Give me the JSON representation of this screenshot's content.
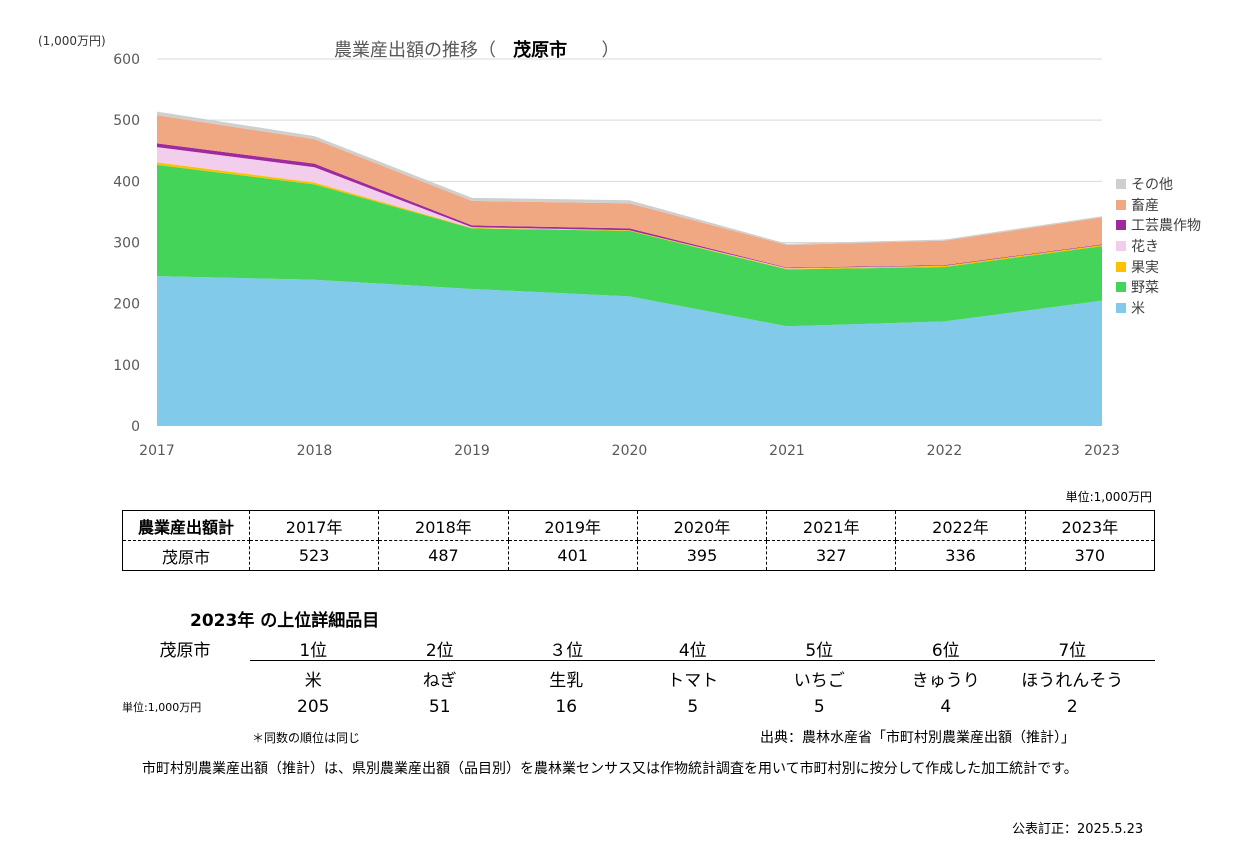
{
  "chart_data": {
    "type": "area",
    "title": "農業産出額の推移（",
    "title_city": "茂原市",
    "title_close": "）",
    "unit_label": "(1,000万円)",
    "x": [
      2017,
      2018,
      2019,
      2020,
      2021,
      2022,
      2023
    ],
    "ylim": [
      0,
      600
    ],
    "yticks": [
      0,
      100,
      200,
      300,
      400,
      500,
      600
    ],
    "grid": true,
    "stacked": true,
    "legend_position": "right",
    "series": [
      {
        "name": "米",
        "color": "#82caea",
        "values": [
          245,
          239,
          224,
          212,
          163,
          171,
          205
        ]
      },
      {
        "name": "野菜",
        "color": "#45d45a",
        "values": [
          182,
          156,
          99,
          107,
          93,
          89,
          89
        ]
      },
      {
        "name": "果実",
        "color": "#ffc000",
        "values": [
          4,
          3,
          1,
          1,
          1,
          2,
          2
        ]
      },
      {
        "name": "花き",
        "color": "#f2cdec",
        "values": [
          25,
          25,
          1,
          0,
          1,
          0,
          0
        ]
      },
      {
        "name": "工芸農作物",
        "color": "#9e2a9e",
        "values": [
          6,
          6,
          3,
          3,
          1,
          1,
          1
        ]
      },
      {
        "name": "畜産",
        "color": "#f0a882",
        "values": [
          46,
          40,
          40,
          41,
          37,
          40,
          44
        ]
      },
      {
        "name": "その他",
        "color": "#cfcfcf",
        "values": [
          6,
          5,
          5,
          5,
          2,
          2,
          2
        ]
      }
    ]
  },
  "totals_table": {
    "unit": "単位:1,000万円",
    "header_label": "農業産出額計",
    "years": [
      "2017年",
      "2018年",
      "2019年",
      "2020年",
      "2021年",
      "2022年",
      "2023年"
    ],
    "row_label": "茂原市",
    "values": [
      "523",
      "487",
      "401",
      "395",
      "327",
      "336",
      "370"
    ]
  },
  "top_items": {
    "title": "2023年 の上位詳細品目",
    "city": "茂原市",
    "ranks": [
      "1位",
      "2位",
      "３位",
      "4位",
      "5位",
      "6位",
      "7位"
    ],
    "items": [
      "米",
      "ねぎ",
      "生乳",
      "トマト",
      "いちご",
      "きゅうり",
      "ほうれんそう"
    ],
    "unit": "単位:1,000万円",
    "values": [
      "205",
      "51",
      "16",
      "5",
      "5",
      "4",
      "2"
    ],
    "note": "＊同数の順位は同じ"
  },
  "source": "出典：農林水産省「市町村別農業産出額（推計）」",
  "description": "市町村別農業産出額（推計）は、県別農業産出額（品目別）を農林業センサス又は作物統計調査を用いて市町村別に按分して作成した加工統計です。",
  "published": "公表訂正：2025.5.23"
}
